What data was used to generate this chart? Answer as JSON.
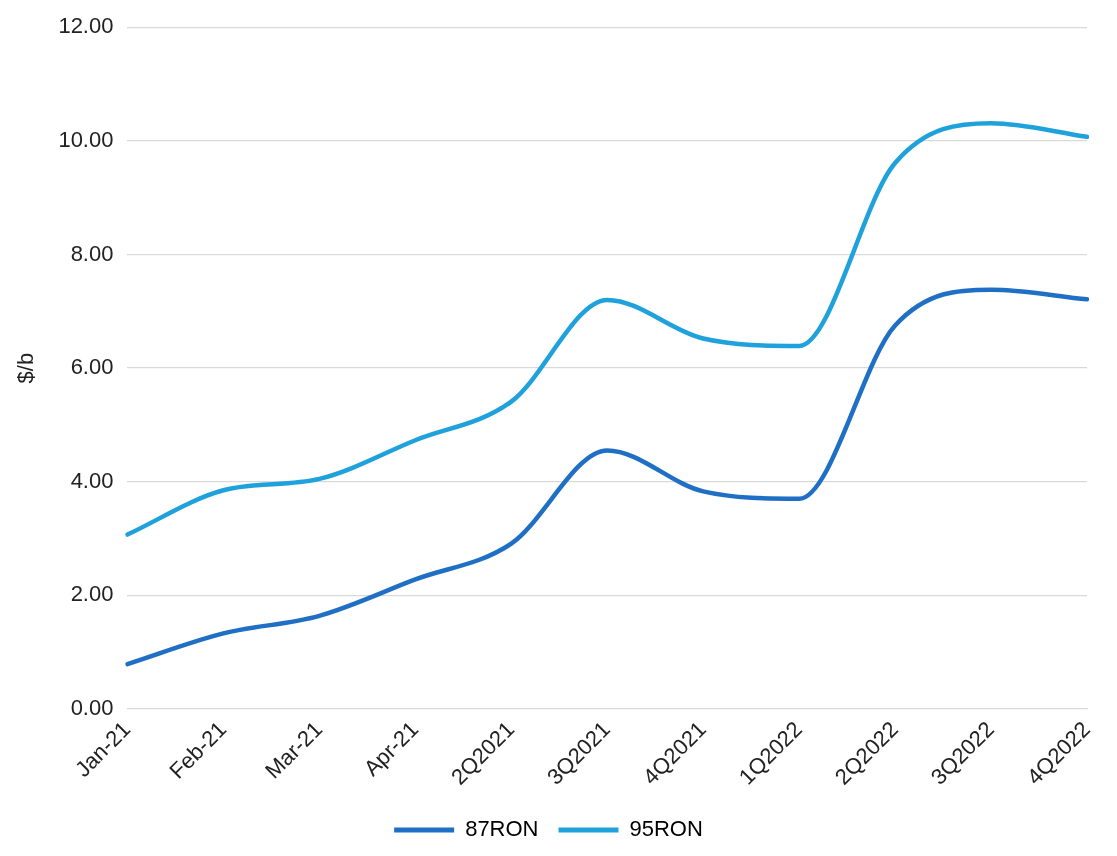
{
  "chart_data": {
    "type": "line",
    "ylabel": "$/b",
    "categories": [
      "Jan-21",
      "Feb-21",
      "Mar-21",
      "Apr-21",
      "2Q2021",
      "3Q2021",
      "4Q2021",
      "1Q2022",
      "2Q2022",
      "3Q2022",
      "4Q2022"
    ],
    "series": [
      {
        "name": "87RON",
        "color": "#1f6fc5",
        "values": [
          0.79,
          1.33,
          1.64,
          2.28,
          2.91,
          4.55,
          3.83,
          3.7,
          6.75,
          7.38,
          7.21
        ]
      },
      {
        "name": "95RON",
        "color": "#1fa1dc",
        "values": [
          3.07,
          3.85,
          4.05,
          4.73,
          5.41,
          7.2,
          6.52,
          6.39,
          9.61,
          10.31,
          10.07
        ]
      }
    ],
    "ylim": [
      0,
      12
    ],
    "yticks": [
      {
        "value": 0,
        "label": "0.00"
      },
      {
        "value": 2,
        "label": "2.00"
      },
      {
        "value": 4,
        "label": "4.00"
      },
      {
        "value": 6,
        "label": "6.00"
      },
      {
        "value": 8,
        "label": "8.00"
      },
      {
        "value": 10,
        "label": "10.00"
      },
      {
        "value": 12,
        "label": "12.00"
      }
    ],
    "grid": "y",
    "legend": "bottom",
    "marker": "none",
    "line_style": "solid"
  }
}
